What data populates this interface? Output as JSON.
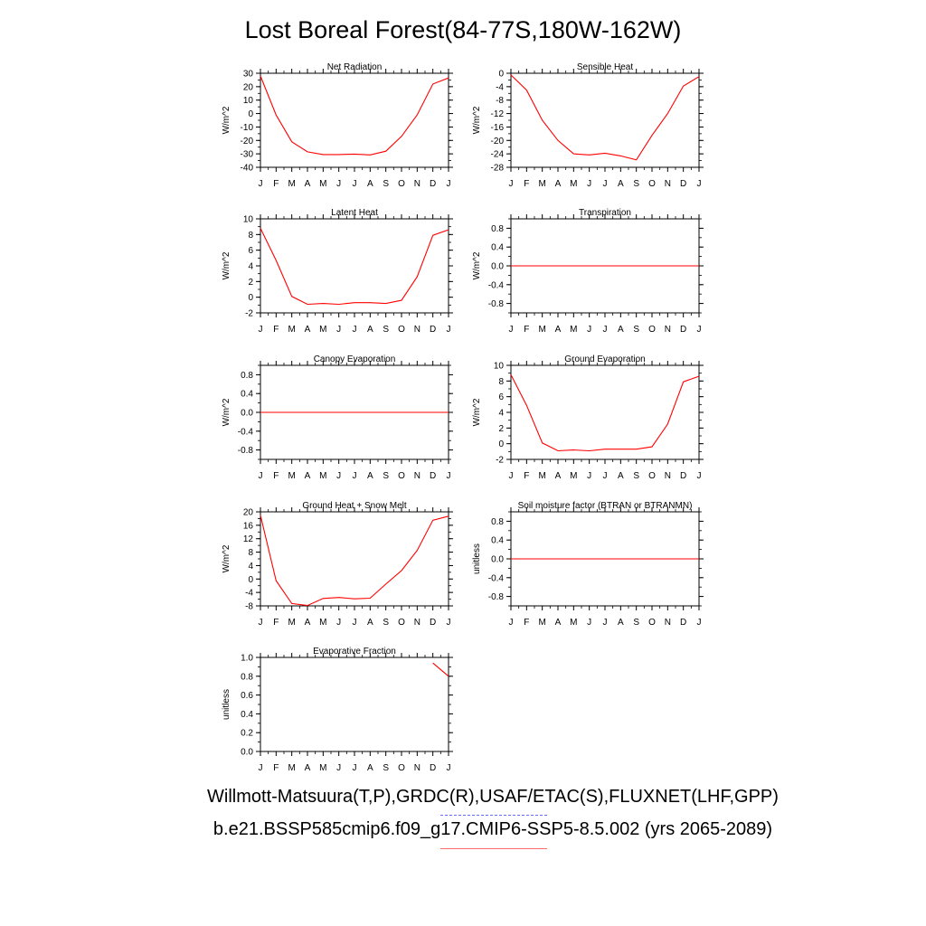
{
  "title": "Lost Boreal Forest(84-77S,180W-162W)",
  "captions": {
    "line1": "Willmott-Matsuura(T,P),GRDC(R),USAF/ETAC(S),FLUXNET(LHF,GPP)",
    "line2": "b.e21.BSSP585cmip6.f09_g17.CMIP6-SSP5-8.5.002 (yrs 2065-2089)"
  },
  "colors": {
    "series": "#ff0000",
    "axis": "#000000",
    "obs_legend": "#6a6aff",
    "model_legend": "#ff6a6a"
  },
  "chart_data": [
    {
      "type": "line",
      "title": "Net Radiation",
      "ylabel": "W/m^2",
      "x": [
        "J",
        "F",
        "M",
        "A",
        "M",
        "J",
        "J",
        "A",
        "S",
        "O",
        "N",
        "D",
        "J"
      ],
      "ylim": [
        -40,
        30
      ],
      "yticks": [
        "30",
        "20",
        "10",
        "0",
        "-10",
        "-20",
        "-30",
        "-40"
      ],
      "series": [
        {
          "values": [
            28,
            -1,
            -21,
            -28.5,
            -30.5,
            -30.5,
            -30.2,
            -30.8,
            -28,
            -17,
            -1,
            22,
            26.5
          ]
        }
      ]
    },
    {
      "type": "line",
      "title": "Sensible Heat",
      "ylabel": "W/m^2",
      "x": [
        "J",
        "F",
        "M",
        "A",
        "M",
        "J",
        "J",
        "A",
        "S",
        "O",
        "N",
        "D",
        "J"
      ],
      "ylim": [
        -28,
        0
      ],
      "yticks": [
        "0",
        "-4",
        "-8",
        "-12",
        "-16",
        "-20",
        "-24",
        "-28"
      ],
      "series": [
        {
          "values": [
            -0.5,
            -5,
            -14,
            -20,
            -24,
            -24.3,
            -23.8,
            -24.6,
            -25.8,
            -18.5,
            -12,
            -3.8,
            -1
          ]
        }
      ]
    },
    {
      "type": "line",
      "title": "Latent Heat",
      "ylabel": "W/m^2",
      "x": [
        "J",
        "F",
        "M",
        "A",
        "M",
        "J",
        "J",
        "A",
        "S",
        "O",
        "N",
        "D",
        "J"
      ],
      "ylim": [
        -2,
        10
      ],
      "yticks": [
        "10",
        "8",
        "6",
        "4",
        "2",
        "0",
        "-2"
      ],
      "series": [
        {
          "values": [
            8.8,
            4.7,
            0.1,
            -0.9,
            -0.8,
            -0.9,
            -0.7,
            -0.7,
            -0.8,
            -0.4,
            2.6,
            7.9,
            8.6
          ]
        }
      ]
    },
    {
      "type": "line",
      "title": "Transpiration",
      "ylabel": "W/m^2",
      "x": [
        "J",
        "F",
        "M",
        "A",
        "M",
        "J",
        "J",
        "A",
        "S",
        "O",
        "N",
        "D",
        "J"
      ],
      "ylim": [
        -1,
        1
      ],
      "yticks": [
        "0.8",
        "0.4",
        "0.0",
        "-0.4",
        "-0.8"
      ],
      "series": [
        {
          "values": [
            0,
            0,
            0,
            0,
            0,
            0,
            0,
            0,
            0,
            0,
            0,
            0,
            0
          ]
        }
      ]
    },
    {
      "type": "line",
      "title": "Canopy Evaporation",
      "ylabel": "W/m^2",
      "x": [
        "J",
        "F",
        "M",
        "A",
        "M",
        "J",
        "J",
        "A",
        "S",
        "O",
        "N",
        "D",
        "J"
      ],
      "ylim": [
        -1,
        1
      ],
      "yticks": [
        "0.8",
        "0.4",
        "0.0",
        "-0.4",
        "-0.8"
      ],
      "series": [
        {
          "values": [
            0,
            0,
            0,
            0,
            0,
            0,
            0,
            0,
            0,
            0,
            0,
            0,
            0
          ]
        }
      ]
    },
    {
      "type": "line",
      "title": "Ground Evaporation",
      "ylabel": "W/m^2",
      "x": [
        "J",
        "F",
        "M",
        "A",
        "M",
        "J",
        "J",
        "A",
        "S",
        "O",
        "N",
        "D",
        "J"
      ],
      "ylim": [
        -2,
        10
      ],
      "yticks": [
        "10",
        "8",
        "6",
        "4",
        "2",
        "0",
        "-2"
      ],
      "series": [
        {
          "values": [
            8.8,
            4.9,
            0.1,
            -0.9,
            -0.8,
            -0.9,
            -0.7,
            -0.7,
            -0.7,
            -0.4,
            2.5,
            7.9,
            8.6
          ]
        }
      ]
    },
    {
      "type": "line",
      "title": "Ground Heat + Snow Melt",
      "ylabel": "W/m^2",
      "x": [
        "J",
        "F",
        "M",
        "A",
        "M",
        "J",
        "J",
        "A",
        "S",
        "O",
        "N",
        "D",
        "J"
      ],
      "ylim": [
        -8,
        20
      ],
      "yticks": [
        "20",
        "16",
        "12",
        "8",
        "4",
        "0",
        "-4",
        "-8"
      ],
      "series": [
        {
          "values": [
            19,
            -0.5,
            -7.3,
            -7.9,
            -5.8,
            -5.5,
            -5.9,
            -5.7,
            -1.5,
            2.5,
            8.5,
            17.5,
            18.7
          ]
        }
      ]
    },
    {
      "type": "line",
      "title": "Soil moisture factor (BTRAN or BTRANMN)",
      "ylabel": "unitless",
      "x": [
        "J",
        "F",
        "M",
        "A",
        "M",
        "J",
        "J",
        "A",
        "S",
        "O",
        "N",
        "D",
        "J"
      ],
      "ylim": [
        -1,
        1
      ],
      "yticks": [
        "0.8",
        "0.4",
        "0.0",
        "-0.4",
        "-0.8"
      ],
      "series": [
        {
          "values": [
            0,
            0,
            0,
            0,
            0,
            0,
            0,
            0,
            0,
            0,
            0,
            0,
            0
          ]
        }
      ]
    },
    {
      "type": "line",
      "title": "Evaporative Fraction",
      "ylabel": "unitless",
      "x": [
        "J",
        "F",
        "M",
        "A",
        "M",
        "J",
        "J",
        "A",
        "S",
        "O",
        "N",
        "D",
        "J"
      ],
      "ylim": [
        0,
        1.0
      ],
      "yticks": [
        "1.0",
        "0.8",
        "0.6",
        "0.4",
        "0.2",
        "0.0"
      ],
      "series": [
        {
          "values": [
            null,
            null,
            null,
            null,
            null,
            null,
            null,
            null,
            null,
            null,
            null,
            0.94,
            0.8
          ]
        }
      ]
    }
  ]
}
